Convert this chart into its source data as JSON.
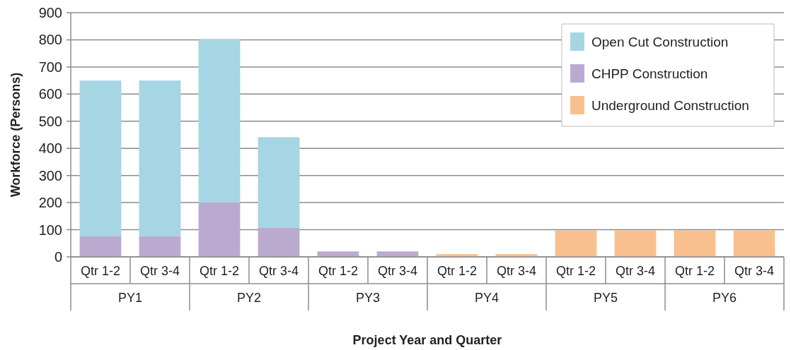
{
  "chart_data": {
    "type": "bar",
    "stacked": true,
    "xlabel": "Project Year and Quarter",
    "ylabel": "Workforce (Persons)",
    "categories": [
      "Qtr 1-2",
      "Qtr 3-4",
      "Qtr 1-2",
      "Qtr 3-4",
      "Qtr 1-2",
      "Qtr 3-4",
      "Qtr 1-2",
      "Qtr 3-4",
      "Qtr 1-2",
      "Qtr 3-4",
      "Qtr 1-2",
      "Qtr 3-4"
    ],
    "annotations": [
      "PY1",
      "PY2",
      "PY3",
      "PY4",
      "PY5",
      "PY6"
    ],
    "series": [
      {
        "name": "Underground Construction",
        "color": "#f9c08f",
        "values": [
          0,
          0,
          0,
          0,
          0,
          0,
          10,
          10,
          98,
          98,
          98,
          98
        ]
      },
      {
        "name": "CHPP Construction",
        "color": "#bbaad0",
        "values": [
          77,
          77,
          200,
          107,
          20,
          20,
          0,
          0,
          0,
          0,
          0,
          0
        ]
      },
      {
        "name": "Open Cut Construction",
        "color": "#a6d5e3",
        "values": [
          573,
          573,
          603,
          334,
          0,
          0,
          0,
          0,
          0,
          0,
          0,
          0
        ]
      }
    ],
    "ylim": [
      0,
      900
    ],
    "yticks": [
      0,
      100,
      200,
      300,
      400,
      500,
      600,
      700,
      800,
      900
    ],
    "grid": "y",
    "legend": "top right"
  }
}
